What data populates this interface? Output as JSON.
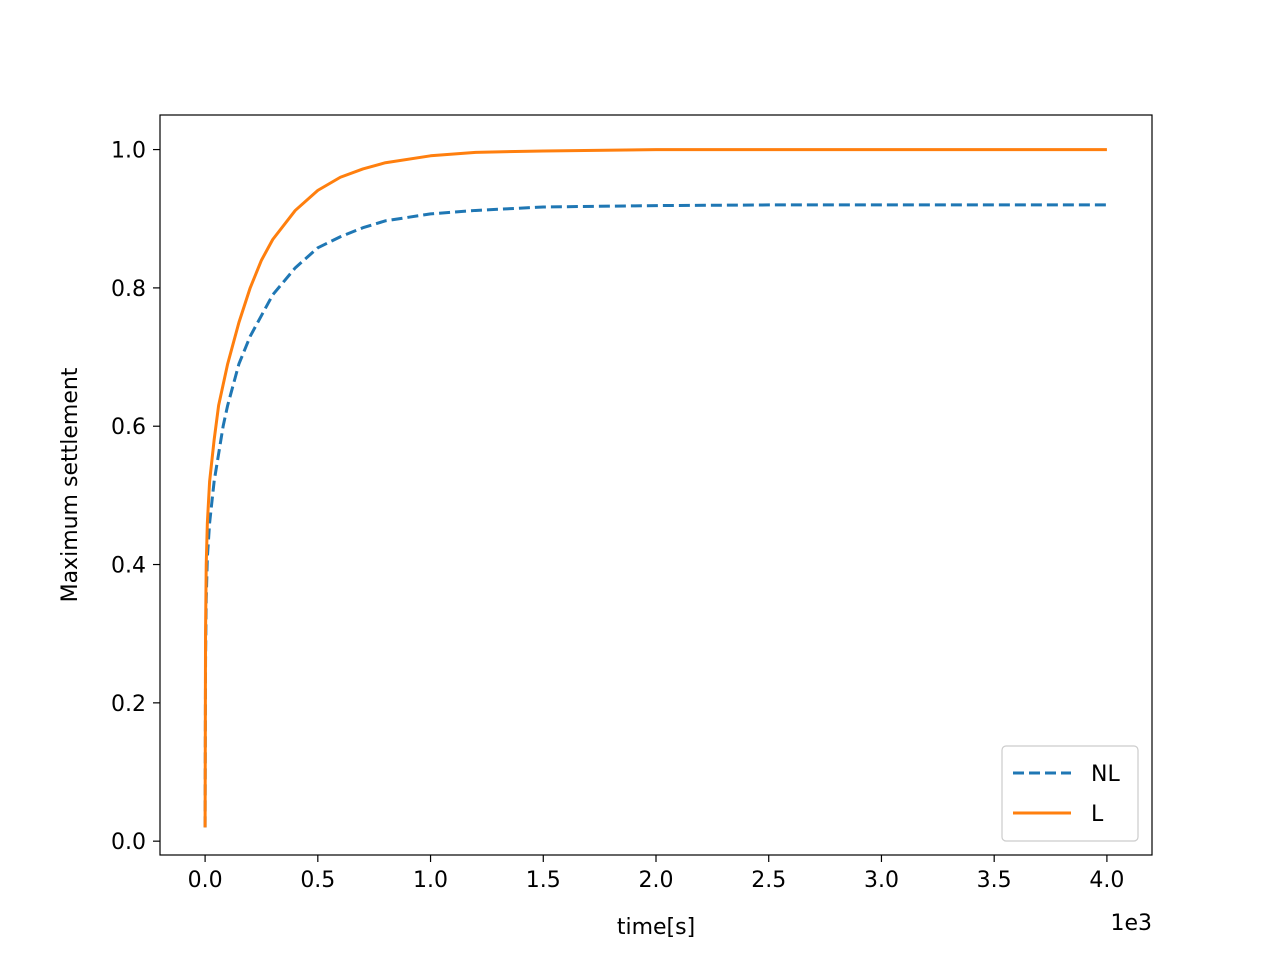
{
  "chart_data": {
    "type": "line",
    "xlabel": "time[s]",
    "ylabel": "Maximum settlement",
    "x_offset_label": "1e3",
    "xlim": [
      -200,
      4200
    ],
    "ylim": [
      -0.02,
      1.05
    ],
    "x_ticks": [
      0,
      500,
      1000,
      1500,
      2000,
      2500,
      3000,
      3500,
      4000
    ],
    "x_tick_labels": [
      "0.0",
      "0.5",
      "1.0",
      "1.5",
      "2.0",
      "2.5",
      "3.0",
      "3.5",
      "4.0"
    ],
    "y_ticks": [
      0.0,
      0.2,
      0.4,
      0.6,
      0.8,
      1.0
    ],
    "y_tick_labels": [
      "0.0",
      "0.2",
      "0.4",
      "0.6",
      "0.8",
      "1.0"
    ],
    "grid": false,
    "legend_position": "lower-right",
    "series": [
      {
        "name": "NL",
        "color": "#1f77b4",
        "dash": "dashed",
        "x": [
          0,
          2,
          5,
          10,
          20,
          40,
          60,
          80,
          100,
          150,
          200,
          250,
          300,
          400,
          500,
          600,
          700,
          800,
          1000,
          1200,
          1500,
          2000,
          2500,
          3000,
          3500,
          4000
        ],
        "y": [
          0.02,
          0.26,
          0.35,
          0.41,
          0.46,
          0.52,
          0.56,
          0.6,
          0.63,
          0.69,
          0.73,
          0.76,
          0.79,
          0.829,
          0.858,
          0.874,
          0.887,
          0.897,
          0.907,
          0.912,
          0.917,
          0.919,
          0.92,
          0.92,
          0.92,
          0.92
        ]
      },
      {
        "name": "L",
        "color": "#ff7f0e",
        "dash": "solid",
        "x": [
          0,
          2,
          5,
          10,
          20,
          40,
          60,
          80,
          100,
          150,
          200,
          250,
          300,
          400,
          500,
          600,
          700,
          800,
          1000,
          1200,
          1500,
          2000,
          2500,
          3000,
          3500,
          4000
        ],
        "y": [
          0.02,
          0.3,
          0.4,
          0.46,
          0.52,
          0.58,
          0.63,
          0.66,
          0.69,
          0.75,
          0.8,
          0.84,
          0.87,
          0.912,
          0.941,
          0.96,
          0.972,
          0.981,
          0.991,
          0.996,
          0.998,
          1.0,
          1.0,
          1.0,
          1.0,
          1.0
        ]
      }
    ]
  }
}
